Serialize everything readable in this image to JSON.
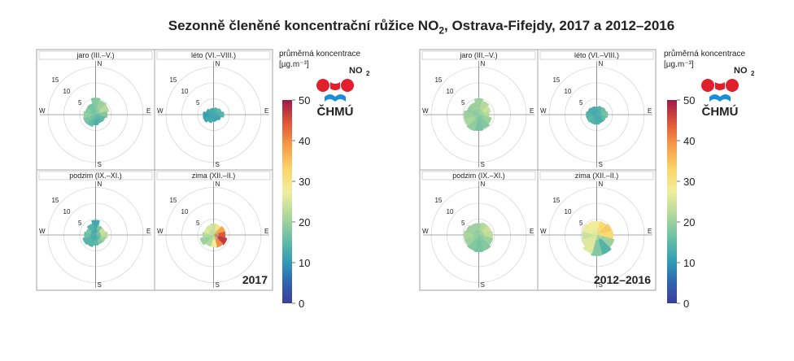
{
  "title": {
    "pre": "Sezonně členěné koncentrační růžice NO",
    "sub": "2",
    "post": ", Ostrava-Fifejdy, 2017 a 2012–2016"
  },
  "colorbar": {
    "label_line1": "průměrná koncentrace",
    "label_line2": "[µg.m⁻³]",
    "pollutant": "NO",
    "pollutant_sub": "2",
    "ticks": [
      0,
      10,
      20,
      30,
      40,
      50
    ]
  },
  "logo_text": "ČHMÚ",
  "compass": {
    "N": "N",
    "S": "S",
    "E": "E",
    "W": "W"
  },
  "ring_labels": [
    "5",
    "10",
    "15"
  ],
  "chart_data": [
    {
      "type": "polar",
      "period": "2017",
      "rlim": [
        0,
        15
      ],
      "color_scale": [
        0,
        50
      ],
      "panels": [
        {
          "season": "jaro (III.–V.)",
          "radius": [
            5.2,
            4.6,
            4.3,
            3.6,
            3.0,
            2.8,
            3.2,
            3.8,
            3.9,
            3.7,
            3.3,
            3.5
          ],
          "value": [
            18,
            20,
            22,
            18,
            15,
            14,
            13,
            15,
            17,
            19,
            18,
            17
          ]
        },
        {
          "season": "léto (VI.–VIII.)",
          "radius": [
            2.0,
            2.2,
            2.6,
            3.2,
            2.4,
            2.0,
            2.1,
            2.6,
            3.3,
            3.2,
            2.4,
            2.0
          ],
          "value": [
            13,
            14,
            15,
            14,
            12,
            11,
            12,
            13,
            12,
            11,
            12,
            13
          ]
        },
        {
          "season": "podzim (IX.–XI.)",
          "radius": [
            4.6,
            3.0,
            3.0,
            3.7,
            3.2,
            3.0,
            3.2,
            3.8,
            4.1,
            3.5,
            3.0,
            3.6
          ],
          "value": [
            12,
            17,
            24,
            23,
            20,
            18,
            15,
            14,
            14,
            16,
            17,
            14
          ]
        },
        {
          "season": "zima (XII.–II.)",
          "radius": [
            3.5,
            3.3,
            3.7,
            3.6,
            4.3,
            4.0,
            3.7,
            3.6,
            4.3,
            3.4,
            3.0,
            3.2
          ],
          "value": [
            24,
            30,
            38,
            44,
            47,
            40,
            28,
            22,
            20,
            22,
            26,
            25
          ]
        }
      ]
    },
    {
      "type": "polar",
      "period": "2012–2016",
      "rlim": [
        0,
        15
      ],
      "color_scale": [
        0,
        50
      ],
      "panels": [
        {
          "season": "jaro (III.–V.)",
          "radius": [
            5.0,
            4.4,
            3.8,
            3.2,
            4.1,
            4.6,
            5.0,
            5.2,
            4.7,
            4.6,
            3.8,
            3.9
          ],
          "value": [
            20,
            22,
            24,
            22,
            20,
            18,
            17,
            19,
            21,
            20,
            19,
            20
          ]
        },
        {
          "season": "léto (VI.–VIII.)",
          "radius": [
            2.4,
            2.7,
            3.0,
            3.4,
            2.9,
            2.8,
            3.0,
            3.0,
            3.2,
            3.3,
            2.9,
            2.6
          ],
          "value": [
            13,
            14,
            16,
            17,
            15,
            13,
            13,
            14,
            15,
            14,
            13,
            13
          ]
        },
        {
          "season": "podzim (IX.–XI.)",
          "radius": [
            3.6,
            3.9,
            4.0,
            4.3,
            4.5,
            5.1,
            5.3,
            5.0,
            4.6,
            4.6,
            4.1,
            3.7
          ],
          "value": [
            20,
            22,
            24,
            23,
            20,
            18,
            17,
            18,
            20,
            21,
            20,
            20
          ]
        },
        {
          "season": "zima (XII.–II.)",
          "radius": [
            4.2,
            4.3,
            4.7,
            5.1,
            5.6,
            6.3,
            6.5,
            5.9,
            4.8,
            4.5,
            4.6,
            4.4
          ],
          "value": [
            28,
            32,
            34,
            32,
            20,
            14,
            18,
            26,
            26,
            24,
            27,
            28
          ]
        }
      ]
    }
  ]
}
